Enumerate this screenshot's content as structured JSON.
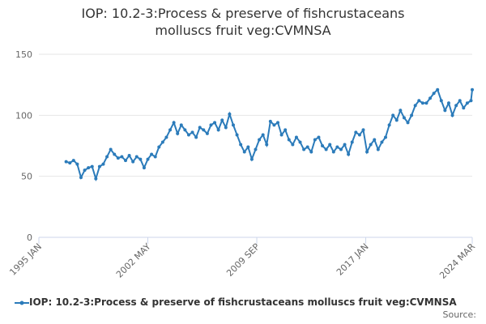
{
  "chart_data": {
    "type": "line",
    "title": "IOP: 10.2-3:Process & preserve of fishcrustaceans molluscs fruit veg:CVMNSA",
    "source": "Source:",
    "x": [
      "1996 NOV",
      "1997 FEB",
      "1997 MAY",
      "1997 AUG",
      "1997 NOV",
      "1998 FEB",
      "1998 MAY",
      "1998 AUG",
      "1998 NOV",
      "1999 FEB",
      "1999 MAY",
      "1999 AUG",
      "1999 NOV",
      "2000 FEB",
      "2000 MAY",
      "2000 AUG",
      "2000 NOV",
      "2001 FEB",
      "2001 MAY",
      "2001 AUG",
      "2001 NOV",
      "2002 FEB",
      "2002 MAY",
      "2002 AUG",
      "2002 NOV",
      "2003 FEB",
      "2003 MAY",
      "2003 AUG",
      "2003 NOV",
      "2004 FEB",
      "2004 MAY",
      "2004 AUG",
      "2004 NOV",
      "2005 FEB",
      "2005 MAY",
      "2005 AUG",
      "2005 NOV",
      "2006 FEB",
      "2006 MAY",
      "2006 AUG",
      "2006 NOV",
      "2007 FEB",
      "2007 MAY",
      "2007 AUG",
      "2007 NOV",
      "2008 FEB",
      "2008 MAY",
      "2008 AUG",
      "2008 NOV",
      "2009 FEB",
      "2009 MAY",
      "2009 AUG",
      "2009 NOV",
      "2010 FEB",
      "2010 MAY",
      "2010 AUG",
      "2010 NOV",
      "2011 FEB",
      "2011 MAY",
      "2011 AUG",
      "2011 NOV",
      "2012 FEB",
      "2012 MAY",
      "2012 AUG",
      "2012 NOV",
      "2013 FEB",
      "2013 MAY",
      "2013 AUG",
      "2013 NOV",
      "2014 FEB",
      "2014 MAY",
      "2014 AUG",
      "2014 NOV",
      "2015 FEB",
      "2015 MAY",
      "2015 AUG",
      "2015 NOV",
      "2016 FEB",
      "2016 MAY",
      "2016 AUG",
      "2016 NOV",
      "2017 FEB",
      "2017 MAY",
      "2017 AUG",
      "2017 NOV",
      "2018 FEB",
      "2018 MAY",
      "2018 AUG",
      "2018 NOV",
      "2019 FEB",
      "2019 MAY",
      "2019 AUG",
      "2019 NOV",
      "2020 FEB",
      "2020 MAY",
      "2020 AUG",
      "2020 NOV",
      "2021 FEB",
      "2021 MAY",
      "2021 AUG",
      "2021 NOV",
      "2022 FEB",
      "2022 MAY",
      "2022 AUG",
      "2022 NOV",
      "2023 FEB",
      "2023 MAY",
      "2023 AUG",
      "2023 NOV",
      "2024 FEB",
      "2024 MAR"
    ],
    "series": [
      {
        "name": "IOP: 10.2-3:Process & preserve of fishcrustaceans molluscs fruit veg:CVMNSA",
        "color": "#2b7bba",
        "values": [
          62,
          61,
          63,
          60,
          49,
          55,
          57,
          58,
          48,
          58,
          60,
          66,
          72,
          68,
          65,
          66,
          63,
          67,
          62,
          66,
          64,
          57,
          64,
          68,
          66,
          74,
          78,
          82,
          88,
          94,
          85,
          92,
          88,
          84,
          86,
          82,
          90,
          88,
          85,
          92,
          94,
          88,
          96,
          90,
          101,
          92,
          84,
          76,
          70,
          74,
          64,
          72,
          80,
          84,
          76,
          95,
          92,
          94,
          84,
          88,
          80,
          76,
          82,
          78,
          72,
          74,
          70,
          80,
          82,
          75,
          72,
          76,
          70,
          74,
          72,
          76,
          68,
          78,
          86,
          84,
          88,
          70,
          76,
          80,
          72,
          78,
          82,
          92,
          100,
          96,
          104,
          98,
          94,
          100,
          108,
          112,
          110,
          110,
          114,
          118,
          121,
          112,
          104,
          110,
          100,
          108,
          112,
          106,
          110,
          112,
          121
        ]
      }
    ],
    "xlim": [
      "1995 JAN",
      "2024 MAR"
    ],
    "xticks": [
      "1995 JAN",
      "2002 MAY",
      "2009 SEP",
      "2017 JAN",
      "2024 MAR"
    ],
    "ylim": [
      0,
      150
    ],
    "yticks": [
      0,
      50,
      100,
      150
    ],
    "grid": true
  }
}
